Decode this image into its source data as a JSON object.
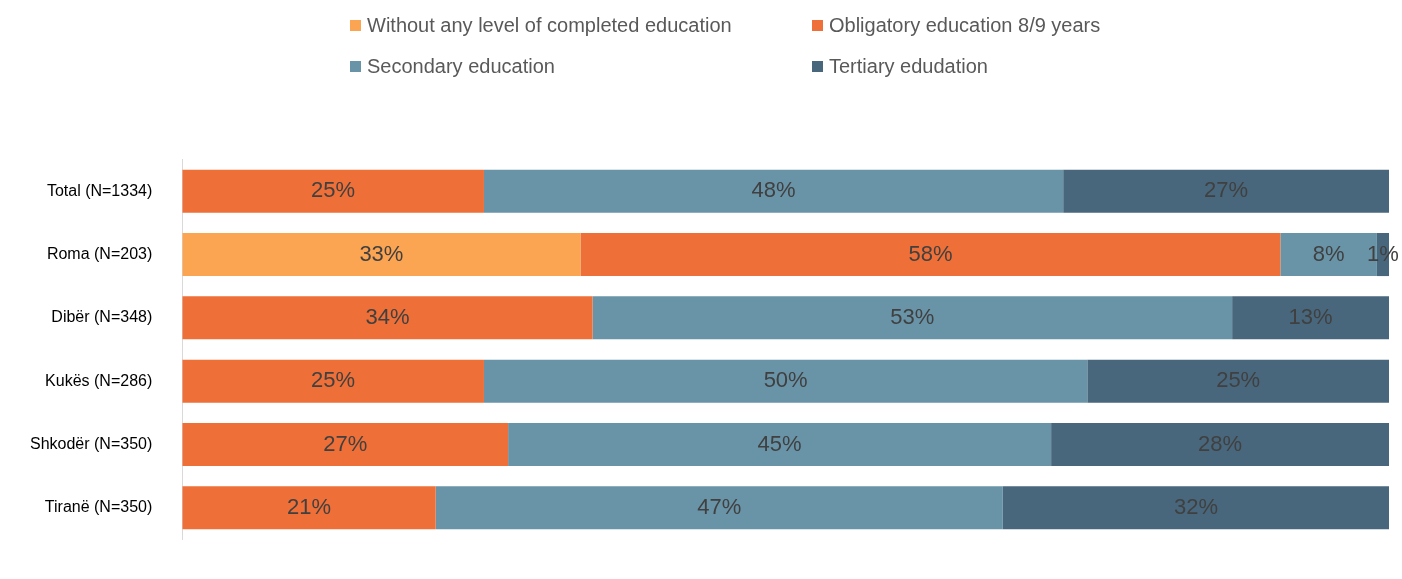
{
  "chart_data": {
    "type": "bar",
    "orientation": "horizontal",
    "stacked": true,
    "legend": "top",
    "categories": [
      "Total (N=1334)",
      "Roma (N=203)",
      "Dibër (N=348)",
      "Kukës (N=286)",
      "Shkodër (N=350)",
      "Tiranë (N=350)"
    ],
    "series": [
      {
        "name": "Without any level of completed education",
        "color": "#fba452",
        "values": [
          0,
          33,
          0,
          0,
          0,
          0
        ],
        "value_labels": [
          null,
          "33%",
          null,
          null,
          null,
          null
        ]
      },
      {
        "name": "Obligatory education 8/9 years",
        "color": "#ee6f37",
        "values": [
          25,
          58,
          34,
          25,
          27,
          21
        ],
        "value_labels": [
          "25%",
          "58%",
          "34%",
          "25%",
          "27%",
          "21%"
        ]
      },
      {
        "name": "Secondary education",
        "color": "#6994a8",
        "values": [
          48,
          8,
          53,
          50,
          45,
          47
        ],
        "value_labels": [
          "48%",
          "8%",
          "53%",
          "50%",
          "45%",
          "47%"
        ]
      },
      {
        "name": "Tertiary edudation",
        "color": "#48677c",
        "values": [
          27,
          1,
          13,
          25,
          28,
          32
        ],
        "value_labels": [
          "27%",
          "1%",
          "13%",
          "25%",
          "28%",
          "32%"
        ]
      }
    ]
  }
}
